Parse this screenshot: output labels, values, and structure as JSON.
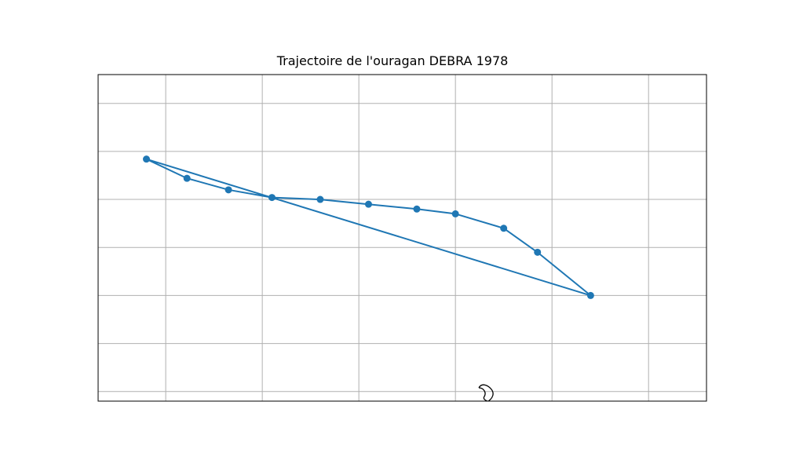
{
  "title": "Trajectoire de l'ouragan DEBRA 1978",
  "colors": {
    "track": "#1f77b4",
    "grid": "#b0b0b0",
    "frame": "#000000",
    "coastline": "#000000",
    "background": "#ffffff"
  },
  "chart_data": {
    "type": "line",
    "title": "Trajectoire de l'ouragan DEBRA 1978",
    "xlabel": "",
    "ylabel": "",
    "grid": true,
    "xlim": [
      -98.7,
      -92.4
    ],
    "ylim": [
      27.2,
      30.6
    ],
    "gridlines_x": [
      -98,
      -97,
      -96,
      -95,
      -94,
      -93
    ],
    "gridlines_y": [
      27.3,
      27.8,
      28.3,
      28.8,
      29.3,
      29.8,
      30.3
    ],
    "track": [
      {
        "lon": -93.6,
        "lat": 28.3
      },
      {
        "lon": -94.15,
        "lat": 28.75
      },
      {
        "lon": -94.5,
        "lat": 29.0
      },
      {
        "lon": -95.0,
        "lat": 29.15
      },
      {
        "lon": -95.4,
        "lat": 29.2
      },
      {
        "lon": -95.9,
        "lat": 29.25
      },
      {
        "lon": -96.4,
        "lat": 29.3
      },
      {
        "lon": -96.9,
        "lat": 29.32
      },
      {
        "lon": -97.35,
        "lat": 29.4
      },
      {
        "lon": -97.78,
        "lat": 29.52
      },
      {
        "lon": -98.2,
        "lat": 29.72
      },
      {
        "lon": -93.6,
        "lat": 28.3
      }
    ]
  }
}
